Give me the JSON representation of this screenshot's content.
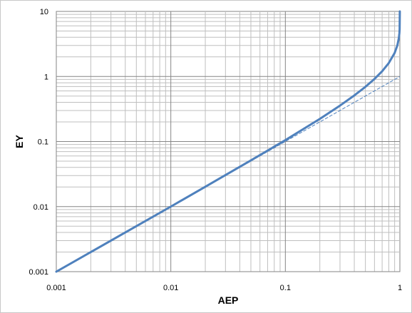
{
  "chart_data": {
    "type": "line",
    "title": "",
    "xlabel": "AEP",
    "ylabel": "EY",
    "x_scale": "log",
    "y_scale": "log",
    "xlim": [
      0.001,
      1
    ],
    "ylim": [
      0.001,
      10
    ],
    "x_tick_labels": [
      "0.001",
      "0.01",
      "0.1",
      "1"
    ],
    "y_tick_labels": [
      "0.001",
      "0.01",
      "0.1",
      "1",
      "10"
    ],
    "grid": true,
    "legend": "none",
    "series": [
      {
        "style": "solid",
        "color": "#4f81bd",
        "points": [
          [
            0.001,
            0.001
          ],
          [
            0.002,
            0.002
          ],
          [
            0.005,
            0.005
          ],
          [
            0.01,
            0.01
          ],
          [
            0.02,
            0.0202
          ],
          [
            0.05,
            0.0513
          ],
          [
            0.1,
            0.105
          ],
          [
            0.2,
            0.223
          ],
          [
            0.3,
            0.357
          ],
          [
            0.4,
            0.511
          ],
          [
            0.5,
            0.693
          ],
          [
            0.6,
            0.916
          ],
          [
            0.7,
            1.204
          ],
          [
            0.8,
            1.609
          ],
          [
            0.9,
            2.303
          ],
          [
            0.95,
            2.996
          ],
          [
            0.98,
            3.912
          ],
          [
            0.99,
            4.605
          ],
          [
            0.995,
            5.298
          ],
          [
            0.999,
            10
          ]
        ]
      },
      {
        "style": "dashed",
        "color": "#4f81bd",
        "points": [
          [
            0.001,
            0.001
          ],
          [
            1,
            1
          ]
        ]
      }
    ]
  }
}
